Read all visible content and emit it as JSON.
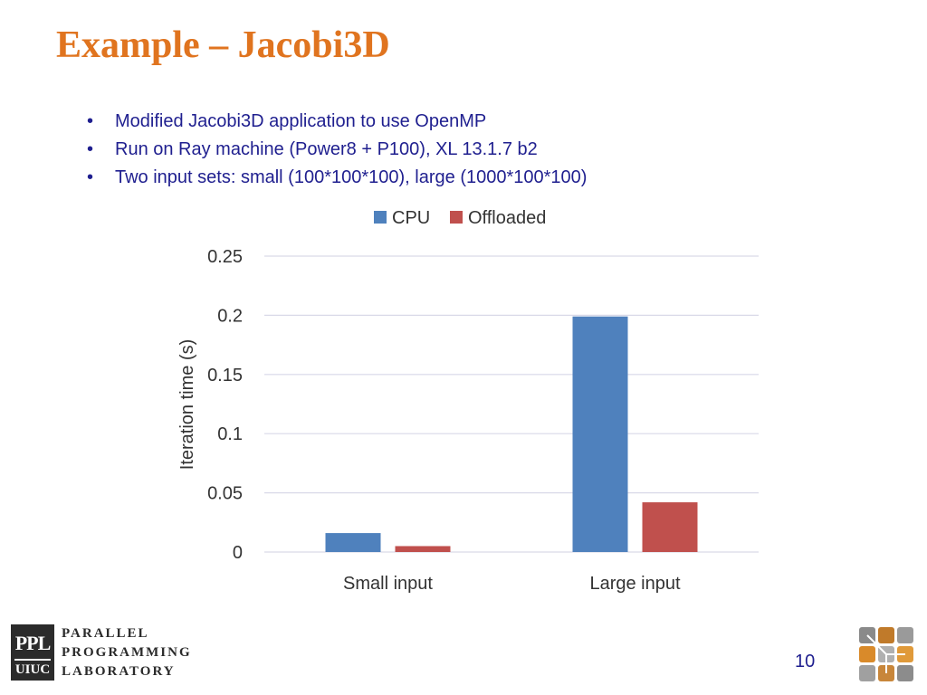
{
  "slide": {
    "title": "Example – Jacobi3D",
    "bullets": [
      "Modified Jacobi3D application to use OpenMP",
      "Run on Ray machine (Power8 + P100), XL 13.1.7 b2",
      "Two input sets: small (100*100*100), large (1000*100*100)"
    ],
    "bullet_glyph": "•",
    "page_number": "10",
    "logo": {
      "box_top": "PPL",
      "box_bottom": "UIUC",
      "words": [
        "PARALLEL",
        "PROGRAMMING",
        "LABORATORY"
      ]
    }
  },
  "colors": {
    "title": "#e0741f",
    "text": "#1f1f8f",
    "cpu": "#4f81bd",
    "offloaded": "#c0504d",
    "grid": "#d9d9e8"
  },
  "chart_data": {
    "type": "bar",
    "title": "",
    "categories": [
      "Small input",
      "Large input"
    ],
    "series": [
      {
        "name": "CPU",
        "values": [
          0.016,
          0.199
        ]
      },
      {
        "name": "Offloaded",
        "values": [
          0.005,
          0.042
        ]
      }
    ],
    "xlabel": "",
    "ylabel": "Iteration time (s)",
    "ylim": [
      0,
      0.25
    ],
    "yticks": [
      "0",
      "0.05",
      "0.1",
      "0.15",
      "0.2",
      "0.25"
    ],
    "legend": "top",
    "grid": true
  }
}
